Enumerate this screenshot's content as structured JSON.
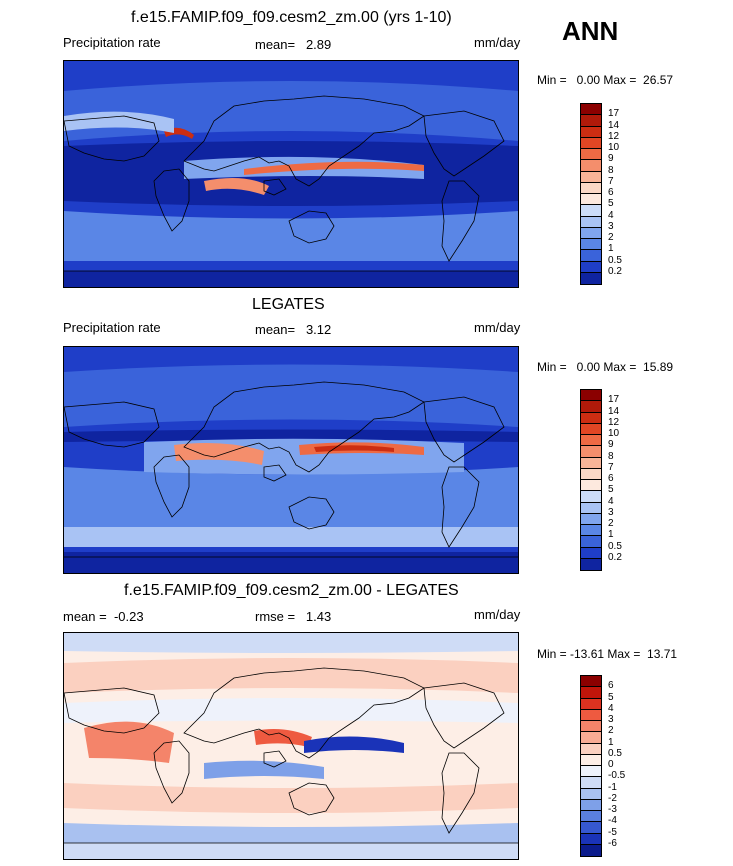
{
  "season": "ANN",
  "panels": [
    {
      "title": "f.e15.FAMIP.f09_f09.cesm2_zm.00 (yrs 1-10)",
      "left_label": "Precipitation rate",
      "stat_text": "mean=   2.89",
      "units": "mm/day",
      "minmax": "Min =   0.00 Max =  26.57",
      "colorbar": {
        "labels": [
          "17",
          "14",
          "12",
          "10",
          "9",
          "8",
          "7",
          "6",
          "5",
          "4",
          "3",
          "2",
          "1",
          "0.5",
          "0.2"
        ],
        "colors": [
          "#8b0000",
          "#b01a0a",
          "#cc2d12",
          "#e14624",
          "#ee6a44",
          "#f48e6c",
          "#f8b498",
          "#fbd8c6",
          "#fde9de",
          "#ccdcf8",
          "#a9c3f4",
          "#80a5ee",
          "#5a86e6",
          "#3a63da",
          "#1f3ec8",
          "#0f24a0"
        ]
      },
      "map_style": "model"
    },
    {
      "title": "LEGATES",
      "left_label": "Precipitation rate",
      "stat_text": "mean=   3.12",
      "units": "mm/day",
      "minmax": "Min =   0.00 Max =  15.89",
      "colorbar": {
        "labels": [
          "17",
          "14",
          "12",
          "10",
          "9",
          "8",
          "7",
          "6",
          "5",
          "4",
          "3",
          "2",
          "1",
          "0.5",
          "0.2"
        ],
        "colors": [
          "#8b0000",
          "#b01a0a",
          "#cc2d12",
          "#e14624",
          "#ee6a44",
          "#f48e6c",
          "#f8b498",
          "#fbd8c6",
          "#fde9de",
          "#ccdcf8",
          "#a9c3f4",
          "#80a5ee",
          "#5a86e6",
          "#3a63da",
          "#1f3ec8",
          "#0f24a0"
        ]
      },
      "map_style": "obs"
    },
    {
      "title": "f.e15.FAMIP.f09_f09.cesm2_zm.00 - LEGATES",
      "left_label": "mean =  -0.23",
      "stat_text": "rmse =   1.43",
      "units": "mm/day",
      "minmax": "Min = -13.61 Max =  13.71",
      "colorbar": {
        "labels": [
          "6",
          "5",
          "4",
          "3",
          "2",
          "1",
          "0.5",
          "0",
          "-0.5",
          "-1",
          "-2",
          "-3",
          "-4",
          "-5",
          "-6"
        ],
        "colors": [
          "#8b0000",
          "#c0150a",
          "#dd3220",
          "#ee5a40",
          "#f4846a",
          "#f8ab94",
          "#fbd0c0",
          "#fdeee6",
          "#eef2fb",
          "#cfdcf6",
          "#a9c1f0",
          "#7ea0e8",
          "#5a7fdf",
          "#3658d0",
          "#1a33b8",
          "#0b1b8c"
        ]
      },
      "map_style": "diff"
    }
  ]
}
